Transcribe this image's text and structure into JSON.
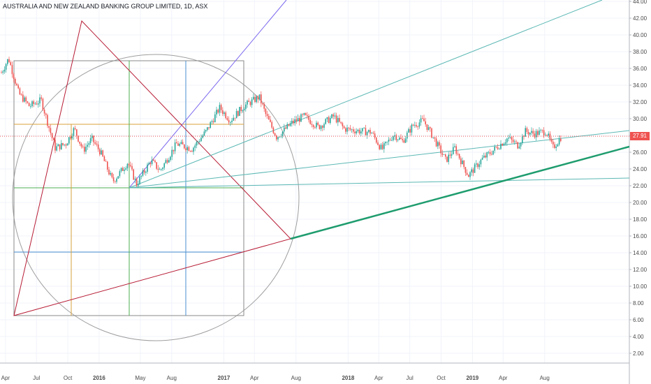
{
  "header": {
    "title": "AUSTRALIA AND NEW ZEALAND BANKING GROUP LIMITED, 1D, ASX"
  },
  "chart_data": {
    "type": "candlestick",
    "title": "AUSTRALIA AND NEW ZEALAND BANKING GROUP LIMITED, 1D, ASX",
    "ylim": [
      0,
      44
    ],
    "yticks": [
      "44.00",
      "42.00",
      "40.00",
      "38.00",
      "36.00",
      "34.00",
      "32.00",
      "30.00",
      "28.00",
      "26.00",
      "24.00",
      "22.00",
      "20.00",
      "18.00",
      "16.00",
      "14.00",
      "12.00",
      "10.00",
      "8.00",
      "6.00",
      "4.00",
      "2.00"
    ],
    "xticks": [
      "Apr",
      "Jul",
      "Oct",
      "2016",
      "May",
      "Aug",
      "2017",
      "Apr",
      "Aug",
      "2018",
      "Apr",
      "Jul",
      "Oct",
      "2019",
      "Apr",
      "Aug"
    ],
    "last_price": "27.91",
    "price_path": [
      [
        "2015-03-20",
        35.5
      ],
      [
        "2015-04-10",
        37.2
      ],
      [
        "2015-05-10",
        33.0
      ],
      [
        "2015-06-10",
        31.5
      ],
      [
        "2015-07-15",
        32.2
      ],
      [
        "2015-08-10",
        28.5
      ],
      [
        "2015-08-25",
        26.5
      ],
      [
        "2015-09-25",
        27.0
      ],
      [
        "2015-10-20",
        28.8
      ],
      [
        "2015-11-15",
        26.2
      ],
      [
        "2015-12-10",
        27.6
      ],
      [
        "2016-01-05",
        26.0
      ],
      [
        "2016-02-10",
        22.5
      ],
      [
        "2016-03-01",
        23.5
      ],
      [
        "2016-03-25",
        24.8
      ],
      [
        "2016-04-20",
        22.2
      ],
      [
        "2016-06-01",
        25.0
      ],
      [
        "2016-06-28",
        23.8
      ],
      [
        "2016-08-15",
        27.0
      ],
      [
        "2016-09-30",
        26.4
      ],
      [
        "2016-11-10",
        28.5
      ],
      [
        "2016-12-20",
        31.3
      ],
      [
        "2017-01-20",
        29.8
      ],
      [
        "2017-03-01",
        31.5
      ],
      [
        "2017-04-15",
        32.6
      ],
      [
        "2017-05-05",
        30.4
      ],
      [
        "2017-06-05",
        27.8
      ],
      [
        "2017-07-20",
        29.5
      ],
      [
        "2017-08-25",
        30.3
      ],
      [
        "2017-10-05",
        29.0
      ],
      [
        "2017-11-20",
        30.3
      ],
      [
        "2017-12-20",
        28.8
      ],
      [
        "2018-02-10",
        28.5
      ],
      [
        "2018-03-10",
        28.4
      ],
      [
        "2018-04-10",
        26.3
      ],
      [
        "2018-05-15",
        28.1
      ],
      [
        "2018-06-10",
        27.3
      ],
      [
        "2018-07-10",
        29.2
      ],
      [
        "2018-08-10",
        29.8
      ],
      [
        "2018-09-05",
        28.0
      ],
      [
        "2018-10-15",
        25.0
      ],
      [
        "2018-11-10",
        26.5
      ],
      [
        "2018-12-20",
        23.2
      ],
      [
        "2019-01-30",
        25.2
      ],
      [
        "2019-02-25",
        26.0
      ],
      [
        "2019-04-15",
        27.7
      ],
      [
        "2019-05-15",
        26.8
      ],
      [
        "2019-06-05",
        28.5
      ],
      [
        "2019-07-01",
        28.2
      ],
      [
        "2019-08-05",
        28.5
      ],
      [
        "2019-08-25",
        26.5
      ],
      [
        "2019-09-20",
        27.9
      ]
    ],
    "colors": {
      "up": "#26a69a",
      "down": "#ef5350",
      "circle": "#9e9e9e",
      "triangle": "#b71c35",
      "fan_line": "#5bb8b4",
      "support_line": "#1e9c6e",
      "diagonal": "#7b68ee",
      "box_gray": "#8a8a8a",
      "box_orange": "#d9a13b",
      "box_green": "#4caf50",
      "box_blue": "#4a8fd0",
      "last_price_line": "#ef5350"
    }
  }
}
